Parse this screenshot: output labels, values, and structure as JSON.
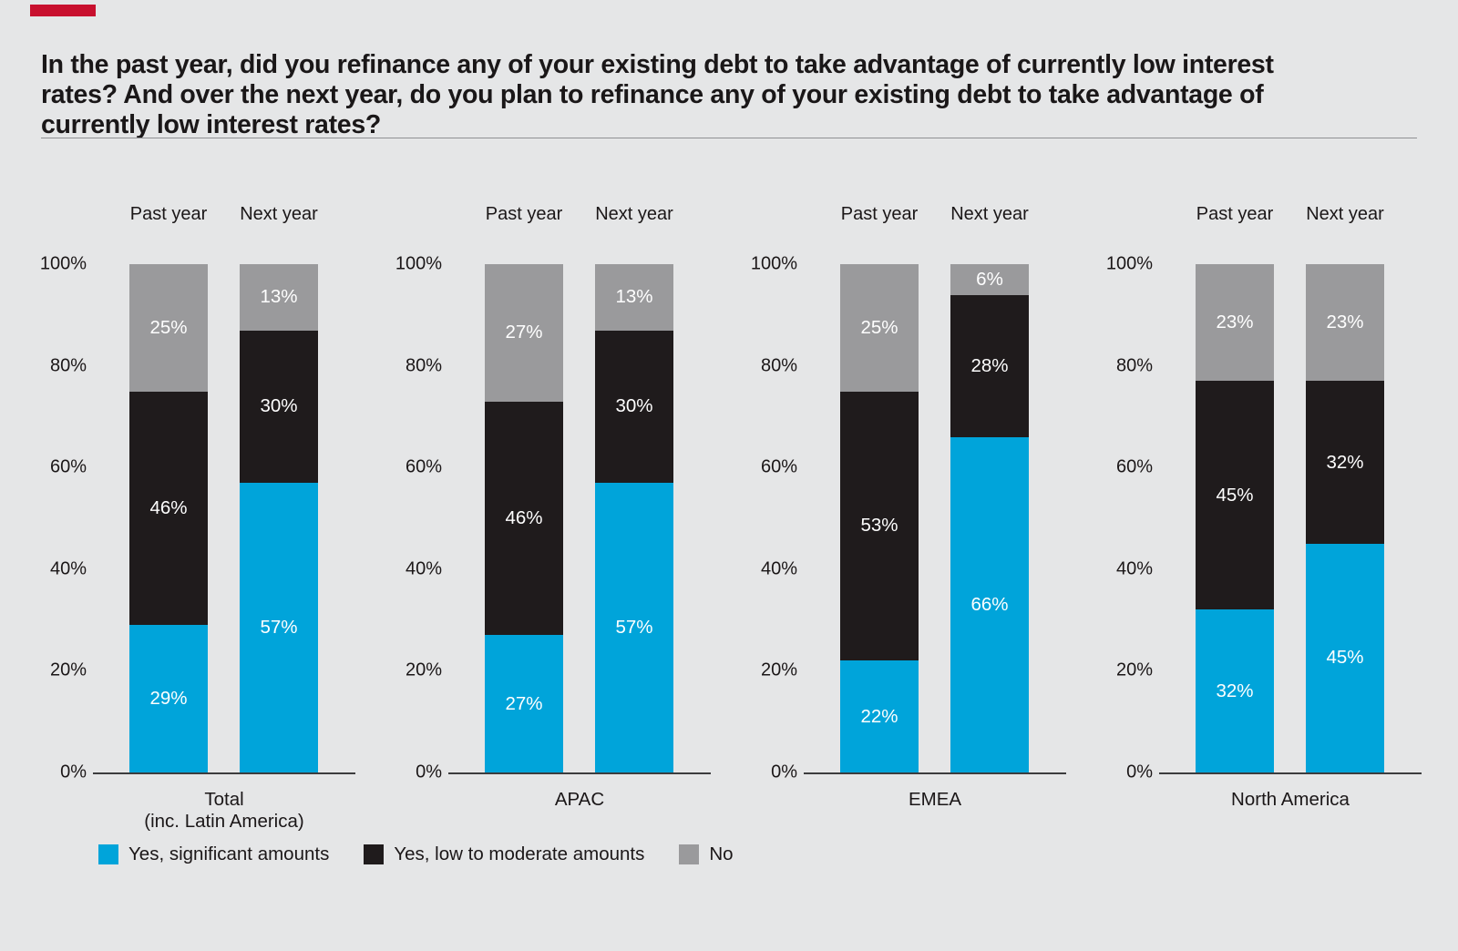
{
  "page": {
    "background_color": "#e5e6e7",
    "accent_bar_color": "#c8102e",
    "title": "In the past year, did you refinance any of your existing debt to take advantage of currently low interest rates? And over the next year, do you plan to refinance any of your existing debt to take advantage of currently low interest rates?"
  },
  "chart_data": {
    "type": "bar",
    "stacked": true,
    "title": "In the past year, did you refinance any of your existing debt to take advantage of currently low interest rates? And over the next year, do you plan to refinance any of your existing debt to take advantage of currently low interest rates?",
    "xlabel": "",
    "ylabel": "",
    "ylim": [
      0,
      100
    ],
    "grid": false,
    "legend_position": "bottom",
    "yticks": [
      "0%",
      "20%",
      "40%",
      "60%",
      "80%",
      "100%"
    ],
    "bar_headers": [
      "Past year",
      "Next year"
    ],
    "series_colors": {
      "significant": "#00a4da",
      "moderate": "#1f1b1c",
      "no": "#9a9a9c"
    },
    "stack_order_top_to_bottom": [
      "no",
      "moderate",
      "significant"
    ],
    "legend": [
      {
        "key": "significant",
        "label": "Yes, significant amounts",
        "color": "#00a4da"
      },
      {
        "key": "moderate",
        "label": "Yes, low to moderate amounts",
        "color": "#1f1b1c"
      },
      {
        "key": "no",
        "label": "No",
        "color": "#9a9a9c"
      }
    ],
    "groups": [
      {
        "category": "Total",
        "category_line2": "(inc. Latin America)",
        "bars": [
          {
            "label": "Past year",
            "values": {
              "significant": 29,
              "moderate": 46,
              "no": 25
            }
          },
          {
            "label": "Next year",
            "values": {
              "significant": 57,
              "moderate": 30,
              "no": 13
            }
          }
        ]
      },
      {
        "category": "APAC",
        "category_line2": "",
        "bars": [
          {
            "label": "Past year",
            "values": {
              "significant": 27,
              "moderate": 46,
              "no": 27
            }
          },
          {
            "label": "Next year",
            "values": {
              "significant": 57,
              "moderate": 30,
              "no": 13
            }
          }
        ]
      },
      {
        "category": "EMEA",
        "category_line2": "",
        "bars": [
          {
            "label": "Past year",
            "values": {
              "significant": 22,
              "moderate": 53,
              "no": 25
            }
          },
          {
            "label": "Next year",
            "values": {
              "significant": 66,
              "moderate": 28,
              "no": 6
            }
          }
        ]
      },
      {
        "category": "North America",
        "category_line2": "",
        "bars": [
          {
            "label": "Past year",
            "values": {
              "significant": 32,
              "moderate": 45,
              "no": 23
            }
          },
          {
            "label": "Next year",
            "values": {
              "significant": 45,
              "moderate": 32,
              "no": 23
            }
          }
        ]
      }
    ]
  }
}
